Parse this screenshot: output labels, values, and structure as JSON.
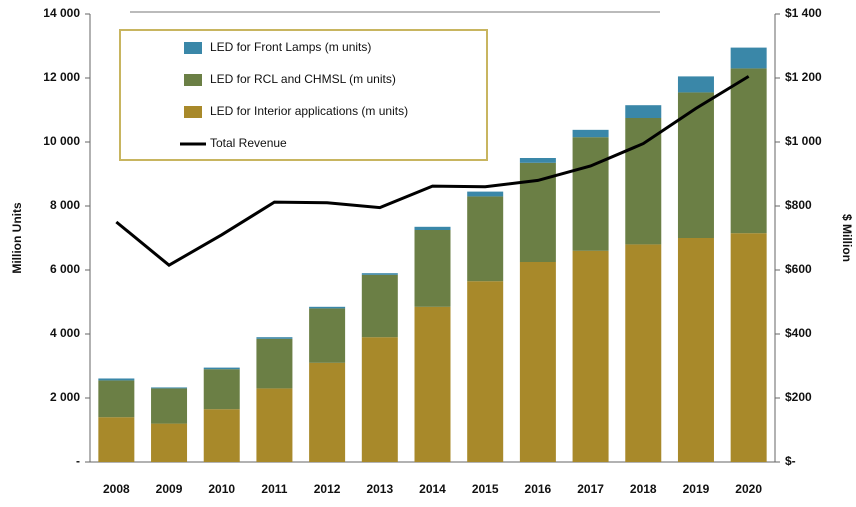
{
  "chart_data": {
    "type": "bar",
    "stacked": true,
    "categories": [
      "2008",
      "2009",
      "2010",
      "2011",
      "2012",
      "2013",
      "2014",
      "2015",
      "2016",
      "2017",
      "2018",
      "2019",
      "2020"
    ],
    "series": [
      {
        "name": "LED for Front Lamps (m units)",
        "color": "#3a87a8",
        "values": [
          60,
          30,
          50,
          50,
          50,
          50,
          100,
          150,
          150,
          230,
          400,
          500,
          650
        ]
      },
      {
        "name": "LED for RCL and CHMSL (m units)",
        "color": "#6b7f45",
        "values": [
          1150,
          1100,
          1250,
          1550,
          1700,
          1950,
          2400,
          2650,
          3100,
          3550,
          3950,
          4550,
          5150
        ]
      },
      {
        "name": "LED for Interior applications (m units)",
        "color": "#a8892a",
        "values": [
          1400,
          1200,
          1650,
          2300,
          3100,
          3900,
          4850,
          5650,
          6250,
          6600,
          6800,
          7000,
          7150
        ]
      },
      {
        "name": "Total Revenue",
        "color": "#000000",
        "type": "line",
        "axis": "y2",
        "values": [
          750,
          615,
          710,
          812,
          810,
          795,
          862,
          860,
          880,
          925,
          995,
          1105,
          1205
        ]
      }
    ],
    "ylabel": "Million Units",
    "y2label": "$ Million",
    "ylim": [
      0,
      14000
    ],
    "yticks": [
      {
        "value": 0,
        "label": "-"
      },
      {
        "value": 2000,
        "label": "2 000"
      },
      {
        "value": 4000,
        "label": "4 000"
      },
      {
        "value": 6000,
        "label": "6 000"
      },
      {
        "value": 8000,
        "label": "8 000"
      },
      {
        "value": 10000,
        "label": "10 000"
      },
      {
        "value": 12000,
        "label": "12 000"
      },
      {
        "value": 14000,
        "label": "14 000"
      }
    ],
    "y2lim": [
      0,
      1400
    ],
    "y2ticks": [
      {
        "value": 0,
        "label": "$-"
      },
      {
        "value": 200,
        "label": "$200"
      },
      {
        "value": 400,
        "label": "$400"
      },
      {
        "value": 600,
        "label": "$600"
      },
      {
        "value": 800,
        "label": "$800"
      },
      {
        "value": 1000,
        "label": "$1 000"
      },
      {
        "value": 1200,
        "label": "$1 200"
      },
      {
        "value": 1400,
        "label": "$1 400"
      }
    ],
    "legend": "upper left"
  }
}
